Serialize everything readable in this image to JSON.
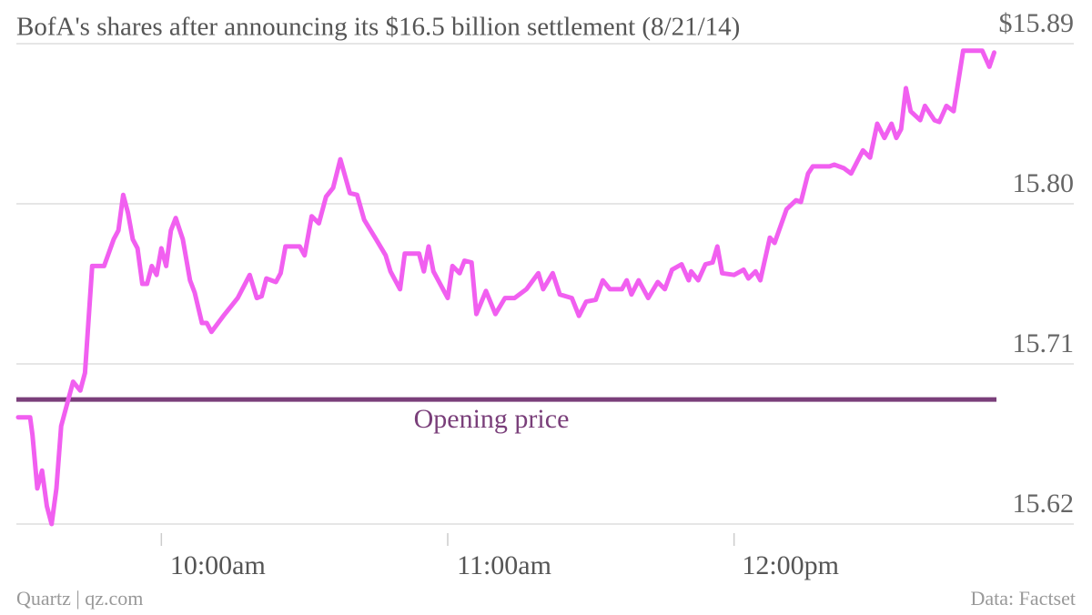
{
  "chart_data": {
    "type": "line",
    "title": "BofA's shares after announcing its $16.5 billion settlement (8/21/14)",
    "source_left": "Quartz | qz.com",
    "source_right": "Data: Factset",
    "xlim": [
      570,
      795
    ],
    "xticks": [
      {
        "value": 600,
        "label": "10:00am"
      },
      {
        "value": 660,
        "label": "11:00am"
      },
      {
        "value": 720,
        "label": "12:00pm"
      }
    ],
    "ylim": [
      15.62,
      15.89
    ],
    "yticks": [
      15.62,
      15.71,
      {
        "value": 15.8,
        "label": "15.80"
      },
      {
        "value": 15.89,
        "label": "$15.89"
      }
    ],
    "grid": true,
    "reference_line": {
      "value": 15.69,
      "label": "Opening price",
      "color": "#7a3f7a"
    },
    "series": [
      {
        "name": "BofA",
        "color": "#f15ff0",
        "x": [
          570,
          572.5,
          573,
          574,
          575,
          576,
          577,
          578,
          579,
          581.5,
          583,
          584,
          585.5,
          588,
          590,
          591,
          592,
          593,
          594,
          595,
          596,
          597,
          598,
          599,
          600,
          601,
          602,
          603,
          604.5,
          606,
          607,
          608.5,
          609.5,
          610.5,
          613,
          616,
          618.5,
          620,
          621,
          622,
          624,
          625,
          626,
          629,
          630,
          631.5,
          633,
          634.5,
          636,
          637.5,
          639.5,
          641,
          642.5,
          645,
          647,
          648,
          650,
          651,
          654,
          655,
          656,
          657,
          660,
          661,
          662.5,
          663.5,
          665,
          666,
          668,
          670,
          672,
          674,
          676.5,
          679,
          680,
          682,
          683.5,
          686,
          687.5,
          689,
          691,
          692.5,
          694,
          696.5,
          697.5,
          698.5,
          700,
          702,
          704,
          705.5,
          707,
          709,
          710.5,
          711,
          712.5,
          714,
          715.5,
          716.5,
          717.5,
          720,
          722,
          723,
          724.5,
          725.5,
          727.5,
          728.5,
          731,
          733,
          734,
          735.5,
          736.5,
          740,
          741,
          743,
          744.5,
          747,
          748.5,
          750,
          751.5,
          753,
          754,
          755,
          756,
          757,
          759,
          760,
          762,
          763,
          764.5,
          766,
          768,
          769.5,
          772,
          773.5,
          774.5
        ],
        "values": [
          15.68,
          15.68,
          15.67,
          15.64,
          15.65,
          15.63,
          15.62,
          15.64,
          15.675,
          15.7,
          15.695,
          15.705,
          15.765,
          15.765,
          15.78,
          15.785,
          15.805,
          15.795,
          15.78,
          15.775,
          15.755,
          15.755,
          15.765,
          15.76,
          15.775,
          15.765,
          15.785,
          15.792,
          15.78,
          15.757,
          15.75,
          15.733,
          15.733,
          15.728,
          15.737,
          15.747,
          15.76,
          15.747,
          15.748,
          15.758,
          15.756,
          15.761,
          15.776,
          15.776,
          15.771,
          15.793,
          15.789,
          15.804,
          15.809,
          15.825,
          15.806,
          15.805,
          15.791,
          15.78,
          15.771,
          15.762,
          15.752,
          15.772,
          15.772,
          15.762,
          15.776,
          15.762,
          15.747,
          15.765,
          15.761,
          15.768,
          15.767,
          15.738,
          15.751,
          15.738,
          15.747,
          15.747,
          15.752,
          15.761,
          15.752,
          15.761,
          15.749,
          15.747,
          15.737,
          15.745,
          15.746,
          15.757,
          15.752,
          15.752,
          15.757,
          15.749,
          15.757,
          15.747,
          15.756,
          15.752,
          15.763,
          15.766,
          15.757,
          15.762,
          15.757,
          15.766,
          15.767,
          15.776,
          15.761,
          15.76,
          15.763,
          15.758,
          15.762,
          15.757,
          15.781,
          15.778,
          15.797,
          15.802,
          15.801,
          15.817,
          15.821,
          15.821,
          15.822,
          15.82,
          15.817,
          15.83,
          15.826,
          15.845,
          15.837,
          15.845,
          15.837,
          15.842,
          15.865,
          15.852,
          15.847,
          15.855,
          15.847,
          15.846,
          15.855,
          15.852,
          15.886,
          15.886,
          15.886,
          15.877,
          15.885
        ]
      }
    ]
  }
}
